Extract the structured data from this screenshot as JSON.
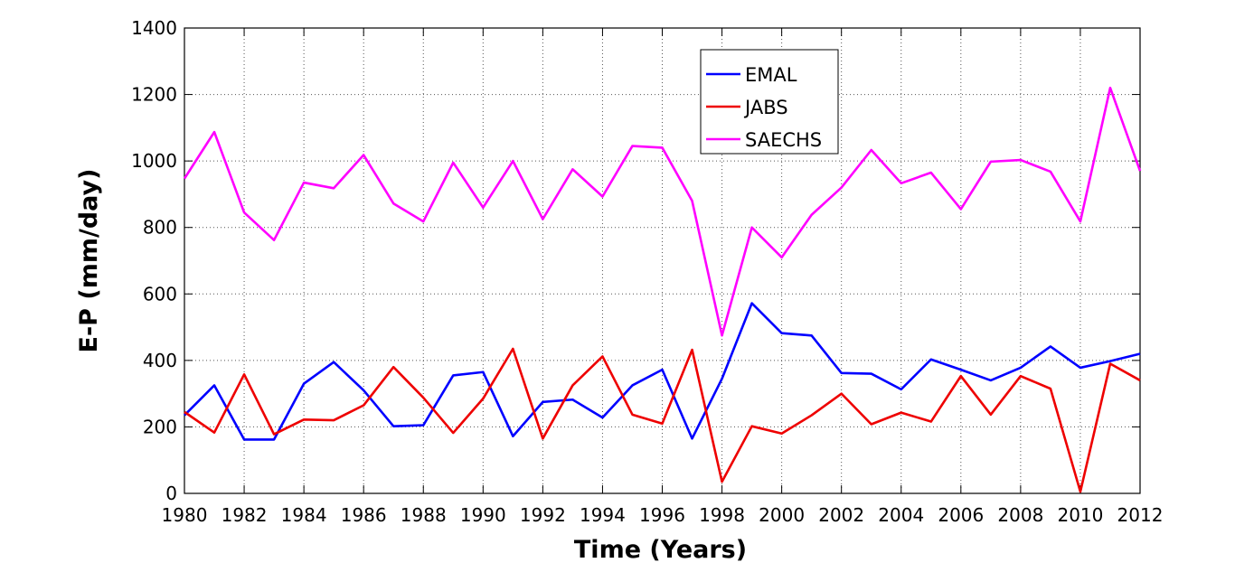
{
  "chart_data": {
    "type": "line",
    "xlabel": "Time (Years)",
    "ylabel": "E-P (mm/day)",
    "xlim": [
      1980,
      2012
    ],
    "ylim": [
      0,
      1400
    ],
    "x_ticks": [
      "1980",
      "1982",
      "1984",
      "1986",
      "1988",
      "1990",
      "1992",
      "1994",
      "1996",
      "1998",
      "2000",
      "2002",
      "2004",
      "2006",
      "2008",
      "2010",
      "2012"
    ],
    "y_ticks": [
      "0",
      "200",
      "400",
      "600",
      "800",
      "1000",
      "1200",
      "1400"
    ],
    "grid": "dotted",
    "legend_position": "top-center",
    "x": [
      1980,
      1981,
      1982,
      1983,
      1984,
      1985,
      1986,
      1987,
      1988,
      1989,
      1990,
      1991,
      1992,
      1993,
      1994,
      1995,
      1996,
      1997,
      1998,
      1999,
      2000,
      2001,
      2002,
      2003,
      2004,
      2005,
      2006,
      2007,
      2008,
      2009,
      2010,
      2011,
      2012
    ],
    "series": [
      {
        "name": "EMAL",
        "color": "#0000ff",
        "values": [
          235,
          325,
          162,
          162,
          330,
          395,
          310,
          202,
          205,
          355,
          365,
          172,
          275,
          282,
          228,
          325,
          372,
          165,
          345,
          572,
          482,
          475,
          362,
          360,
          313,
          403,
          372,
          340,
          378,
          442,
          378,
          398,
          420
        ]
      },
      {
        "name": "JABS",
        "color": "#ee0000",
        "values": [
          245,
          183,
          358,
          178,
          222,
          220,
          265,
          380,
          288,
          182,
          285,
          435,
          165,
          325,
          412,
          237,
          210,
          432,
          35,
          202,
          180,
          235,
          300,
          208,
          243,
          216,
          353,
          237,
          353,
          315,
          5,
          390,
          340
        ]
      },
      {
        "name": "SAECHS",
        "color": "#ff00ff",
        "values": [
          947,
          1087,
          845,
          762,
          935,
          918,
          1018,
          872,
          818,
          995,
          860,
          1000,
          825,
          975,
          893,
          1045,
          1040,
          880,
          475,
          800,
          710,
          838,
          920,
          1033,
          933,
          965,
          855,
          998,
          1003,
          968,
          818,
          1220,
          970
        ]
      }
    ]
  }
}
